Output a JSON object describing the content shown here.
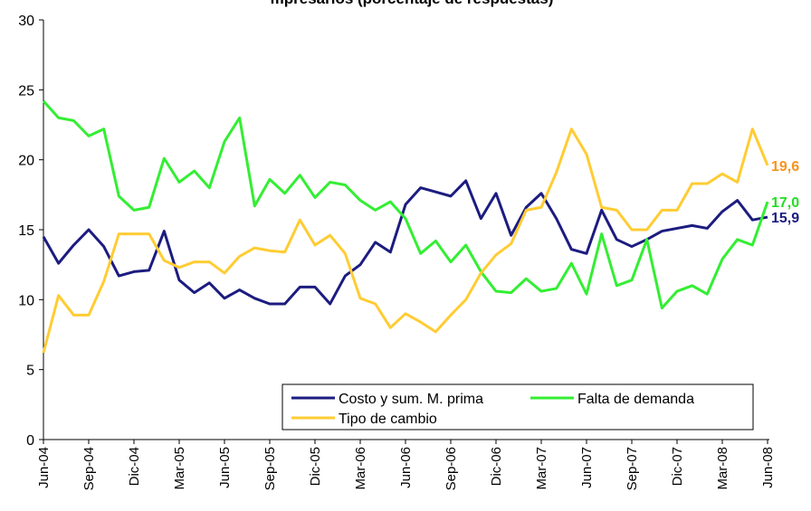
{
  "chart_data": {
    "type": "line",
    "title": "mpresarios (porcentaje de respuestas)",
    "categories": [
      "Jun-04",
      null,
      null,
      "Sep-04",
      null,
      null,
      "Dic-04",
      null,
      null,
      "Mar-05",
      null,
      null,
      "Jun-05",
      null,
      null,
      "Sep-05",
      null,
      null,
      "Dic-05",
      null,
      null,
      "Mar-06",
      null,
      null,
      "Jun-06",
      null,
      null,
      "Sep-06",
      null,
      null,
      "Dic-06",
      null,
      null,
      "Mar-07",
      null,
      null,
      "Jun-07",
      null,
      null,
      "Sep-07",
      null,
      null,
      "Dic-07",
      null,
      null,
      "Mar-08",
      null,
      null,
      "Jun-08"
    ],
    "ylim": [
      0,
      30
    ],
    "yticks": [
      0,
      5,
      10,
      15,
      20,
      25,
      30
    ],
    "series": [
      {
        "name": "Costo y sum. M. prima",
        "color": "#1c1c80",
        "label_color": "#1c1c80",
        "values": [
          14.5,
          12.6,
          13.9,
          15.0,
          13.8,
          11.7,
          12.0,
          12.1,
          14.9,
          11.4,
          10.5,
          11.2,
          10.1,
          10.7,
          10.1,
          9.7,
          9.7,
          10.9,
          10.9,
          9.7,
          11.7,
          12.5,
          14.1,
          13.4,
          16.8,
          18.0,
          17.7,
          17.4,
          18.5,
          15.8,
          17.6,
          14.6,
          16.6,
          17.6,
          15.8,
          13.6,
          13.3,
          16.4,
          14.3,
          13.8,
          14.3,
          14.9,
          15.1,
          15.3,
          15.1,
          16.3,
          17.1,
          15.7,
          15.9
        ],
        "value_labels": [
          null,
          null,
          null,
          null,
          null,
          null,
          null,
          null,
          null,
          null,
          null,
          null,
          null,
          null,
          null,
          null,
          null,
          null,
          null,
          null,
          null,
          null,
          null,
          null,
          null,
          null,
          null,
          null,
          null,
          null,
          null,
          null,
          null,
          null,
          null,
          null,
          null,
          null,
          null,
          null,
          null,
          null,
          null,
          null,
          null,
          null,
          null,
          null,
          "15,9"
        ]
      },
      {
        "name": "Falta de demanda",
        "color": "#33ee33",
        "label_color": "#22dd22",
        "values": [
          24.2,
          23.0,
          22.8,
          21.7,
          22.2,
          17.4,
          16.4,
          16.6,
          20.1,
          18.4,
          19.2,
          18.0,
          21.3,
          23.0,
          16.7,
          18.6,
          17.6,
          18.9,
          17.3,
          18.4,
          18.2,
          17.1,
          16.4,
          17.0,
          15.8,
          13.3,
          14.2,
          12.7,
          13.9,
          12.0,
          10.6,
          10.5,
          11.5,
          10.6,
          10.8,
          12.6,
          10.4,
          14.7,
          11.0,
          11.4,
          14.3,
          9.4,
          10.6,
          11.0,
          10.4,
          12.9,
          14.3,
          13.9,
          17.0
        ],
        "value_labels": [
          null,
          null,
          null,
          null,
          null,
          null,
          null,
          null,
          null,
          null,
          null,
          null,
          null,
          null,
          null,
          null,
          null,
          null,
          null,
          null,
          null,
          null,
          null,
          null,
          null,
          null,
          null,
          null,
          null,
          null,
          null,
          null,
          null,
          null,
          null,
          null,
          null,
          null,
          null,
          null,
          null,
          null,
          null,
          null,
          null,
          null,
          null,
          null,
          "17,0"
        ]
      },
      {
        "name": "Tipo de cambio",
        "color": "#ffcc33",
        "label_color": "#f7941d",
        "values": [
          6.2,
          10.3,
          8.9,
          8.9,
          11.3,
          14.7,
          14.7,
          14.7,
          12.8,
          12.3,
          12.7,
          12.7,
          11.9,
          13.1,
          13.7,
          13.5,
          13.4,
          15.7,
          13.9,
          14.6,
          13.3,
          10.1,
          9.7,
          8.0,
          9.0,
          8.4,
          7.7,
          8.9,
          10.0,
          11.9,
          13.2,
          14.0,
          16.4,
          16.6,
          19.1,
          22.2,
          20.4,
          16.6,
          16.4,
          15.0,
          15.0,
          16.4,
          16.4,
          18.3,
          18.3,
          19.0,
          18.4,
          22.2,
          19.6
        ],
        "value_labels": [
          null,
          null,
          null,
          null,
          null,
          null,
          null,
          null,
          null,
          null,
          null,
          null,
          null,
          null,
          null,
          null,
          null,
          null,
          null,
          null,
          null,
          null,
          null,
          null,
          null,
          null,
          null,
          null,
          null,
          null,
          null,
          null,
          null,
          null,
          null,
          null,
          null,
          null,
          null,
          null,
          null,
          null,
          null,
          null,
          null,
          null,
          null,
          null,
          "19,6"
        ]
      }
    ]
  }
}
